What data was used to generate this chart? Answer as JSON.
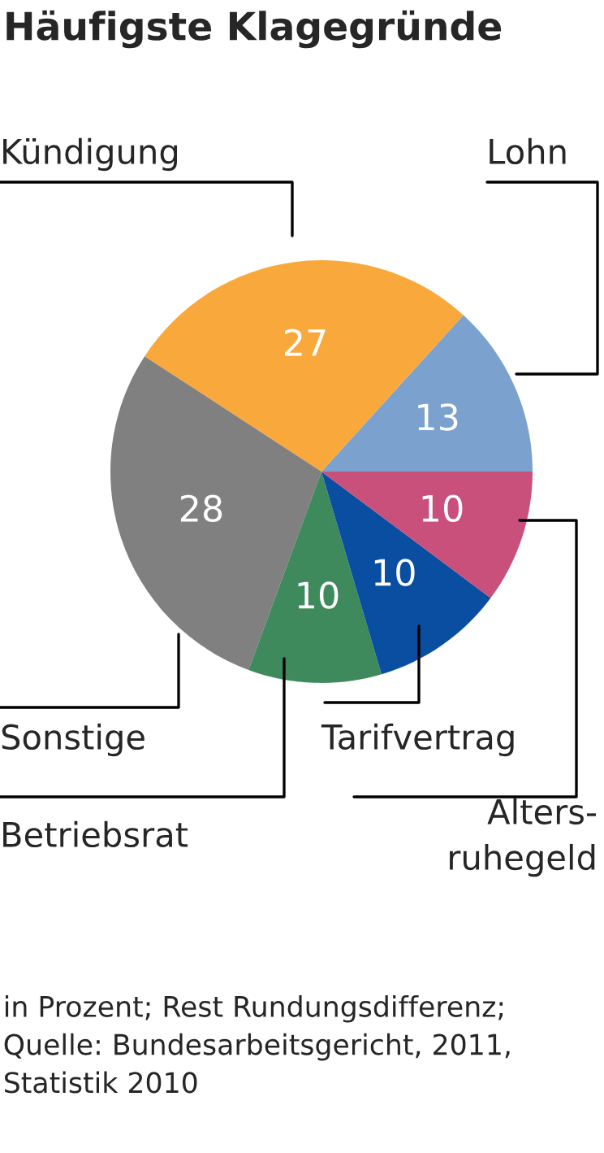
{
  "chart_data": {
    "type": "pie",
    "title": "Häufigste Klagegründe",
    "categories": [
      "Lohn",
      "Kündigung",
      "Sonstige",
      "Betriebsrat",
      "Tarifvertrag",
      "Alters-\nruhegeld"
    ],
    "values": [
      13,
      27,
      28,
      10,
      10,
      10
    ],
    "colors": [
      "#7ba1cf",
      "#f9a93c",
      "#808080",
      "#3f8a5c",
      "#0a4ea2",
      "#c8507a"
    ],
    "data_labels": true,
    "annotations": [
      "in Prozent; Rest Rundungsdifferenz; Quelle: Bundesarbeitsgericht, 2011, Statistik 2010"
    ]
  }
}
